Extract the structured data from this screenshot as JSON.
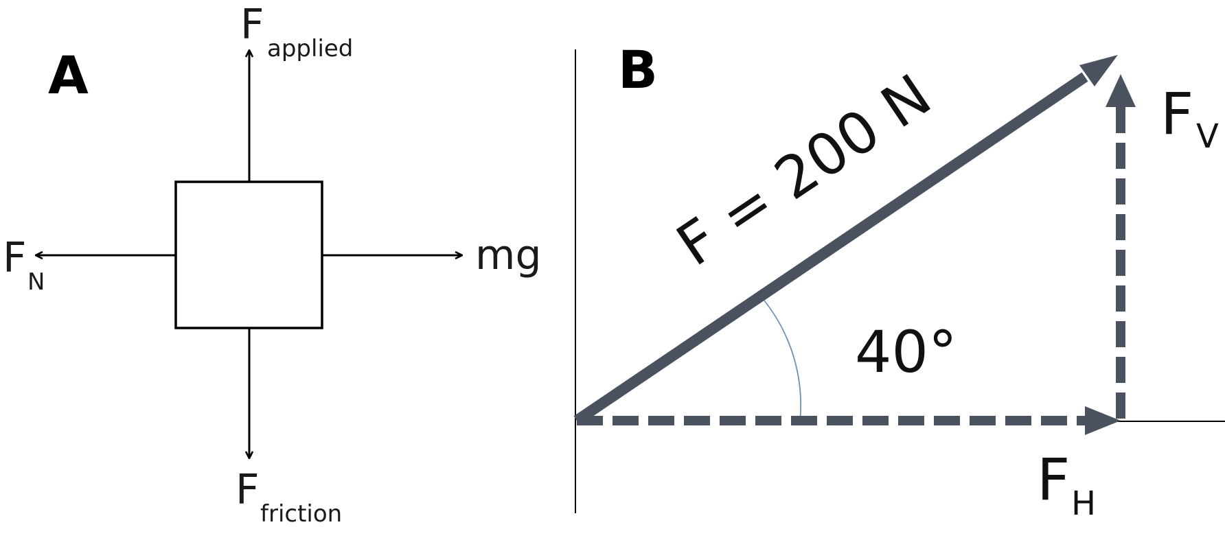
{
  "panel_a": {
    "letter": "A",
    "labels": {
      "applied_main": "F",
      "applied_sub": "applied",
      "normal_main": "F",
      "normal_sub": "N",
      "weight": "mg",
      "friction_main": "F",
      "friction_sub": "friction"
    }
  },
  "panel_b": {
    "letter": "B",
    "labels": {
      "force": "F = 200 N",
      "angle": "40°",
      "vertical_main": "F",
      "vertical_sub": "V",
      "horizontal_main": "F",
      "horizontal_sub": "H"
    },
    "colors": {
      "vector": "#4a5260",
      "angle_arc": "#6f8fb5"
    }
  }
}
